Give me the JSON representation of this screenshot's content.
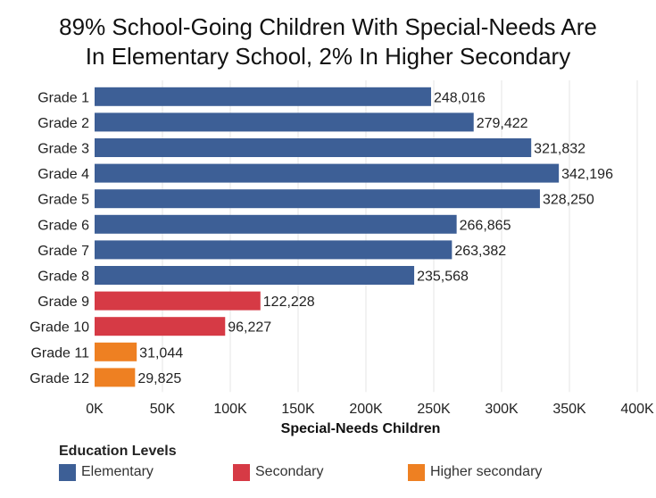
{
  "title_line1": "89% School-Going Children With Special-Needs Are",
  "title_line2": "In Elementary School, 2% In Higher Secondary",
  "legend": {
    "title": "Education Levels",
    "items": [
      {
        "label": "Elementary",
        "color": "#3d5f96"
      },
      {
        "label": "Secondary",
        "color": "#d63a45"
      },
      {
        "label": "Higher secondary",
        "color": "#ee8022"
      }
    ]
  },
  "chart_data": {
    "type": "bar",
    "orientation": "horizontal",
    "title": "89% School-Going Children With Special-Needs Are In Elementary School, 2% In Higher Secondary",
    "xlabel": "Special-Needs Children",
    "ylabel": "",
    "xlim": [
      0,
      400000
    ],
    "xticks": [
      0,
      50000,
      100000,
      150000,
      200000,
      250000,
      300000,
      350000,
      400000
    ],
    "xtick_labels": [
      "0K",
      "50K",
      "100K",
      "150K",
      "200K",
      "250K",
      "300K",
      "350K",
      "400K"
    ],
    "grid": true,
    "legend_position": "bottom-left",
    "categories": [
      "Grade 1",
      "Grade 2",
      "Grade 3",
      "Grade 4",
      "Grade 5",
      "Grade 6",
      "Grade 7",
      "Grade 8",
      "Grade 9",
      "Grade 10",
      "Grade 11",
      "Grade 12"
    ],
    "values": [
      248016,
      279422,
      321832,
      342196,
      328250,
      266865,
      263382,
      235568,
      122228,
      96227,
      31044,
      29825
    ],
    "value_labels": [
      "248,016",
      "279,422",
      "321,832",
      "342,196",
      "328,250",
      "266,865",
      "263,382",
      "235,568",
      "122,228",
      "96,227",
      "31,044",
      "29,825"
    ],
    "groups": [
      "Elementary",
      "Elementary",
      "Elementary",
      "Elementary",
      "Elementary",
      "Elementary",
      "Elementary",
      "Elementary",
      "Secondary",
      "Secondary",
      "Higher secondary",
      "Higher secondary"
    ]
  }
}
